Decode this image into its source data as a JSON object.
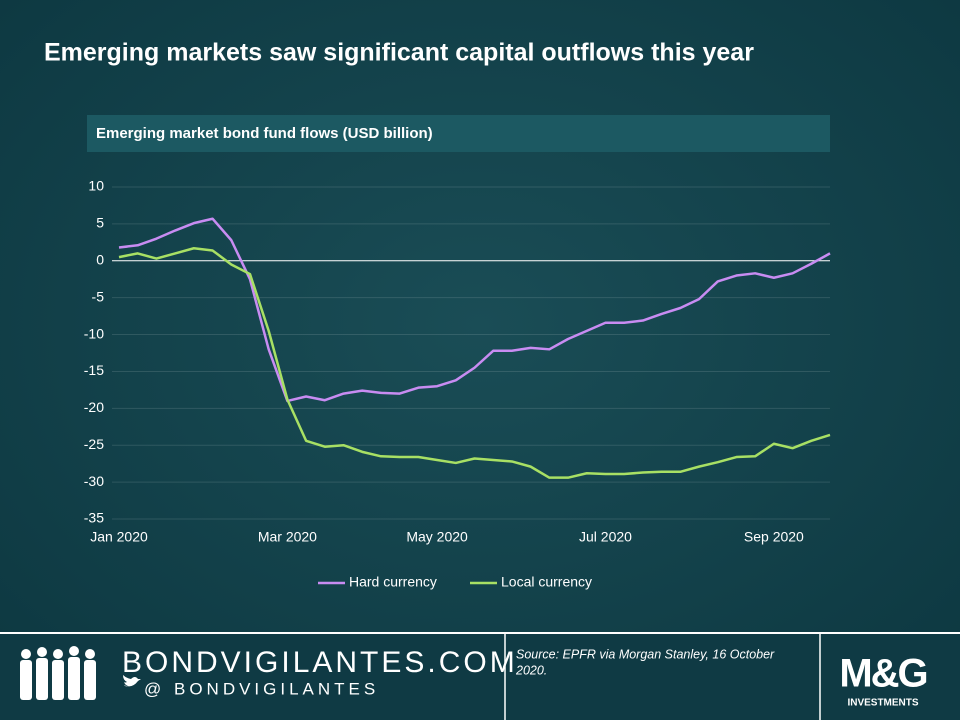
{
  "chart_data": {
    "type": "line",
    "title": "Emerging markets saw significant capital outflows this year",
    "subtitle": "Emerging  market  bond  fund  flows  (USD billion)",
    "categories": [
      "Jan 2020",
      null,
      null,
      null,
      null,
      null,
      null,
      null,
      null,
      "Mar 2020",
      null,
      null,
      null,
      null,
      null,
      null,
      null,
      "May 2020",
      null,
      null,
      null,
      null,
      null,
      null,
      null,
      null,
      "Jul 2020",
      null,
      null,
      null,
      null,
      null,
      null,
      null,
      null,
      "Sep 2020",
      null,
      null,
      null
    ],
    "series": [
      {
        "name": "Hard currency",
        "color": "#c88cf2",
        "values": [
          1.8,
          2.1,
          3.0,
          4.1,
          5.1,
          5.7,
          2.8,
          -2.5,
          -12,
          -19,
          -18.4,
          -18.9,
          -18,
          -17.6,
          -17.9,
          -18,
          -17.2,
          -17,
          -16.2,
          -14.5,
          -12.2,
          -12.2,
          -11.8,
          -12,
          -10.6,
          -9.5,
          -8.4,
          -8.4,
          -8.1,
          -7.2,
          -6.4,
          -5.2,
          -2.8,
          -2,
          -1.7,
          -2.3,
          -1.7,
          -0.4,
          1
        ]
      },
      {
        "name": "Local currency",
        "color": "#a8e064",
        "values": [
          0.5,
          1.0,
          0.3,
          1.0,
          1.7,
          1.4,
          -0.5,
          -1.8,
          -9.5,
          -18.8,
          -24.4,
          -25.2,
          -25,
          -25.9,
          -26.5,
          -26.6,
          -26.6,
          -27,
          -27.4,
          -26.8,
          -27,
          -27.2,
          -27.9,
          -29.4,
          -29.4,
          -28.8,
          -28.9,
          -28.9,
          -28.7,
          -28.6,
          -28.6,
          -27.9,
          -27.3,
          -26.6,
          -26.5,
          -24.8,
          -25.4,
          -24.4,
          -23.6
        ]
      }
    ],
    "ylim": [
      -35,
      10
    ],
    "yticks": [
      -35,
      -30,
      -25,
      -20,
      -15,
      -10,
      -5,
      0,
      5,
      10
    ],
    "grid": true,
    "legend": "bottom"
  },
  "footer": {
    "site": "BONDVIGILANTES.COM",
    "handle": "@ BONDVIGILANTES",
    "source": [
      "Source: EPFR via Morgan  Stanley, 16 October",
      "2020."
    ],
    "logo": "M&G",
    "logo_sub": "INVESTMENTS"
  }
}
